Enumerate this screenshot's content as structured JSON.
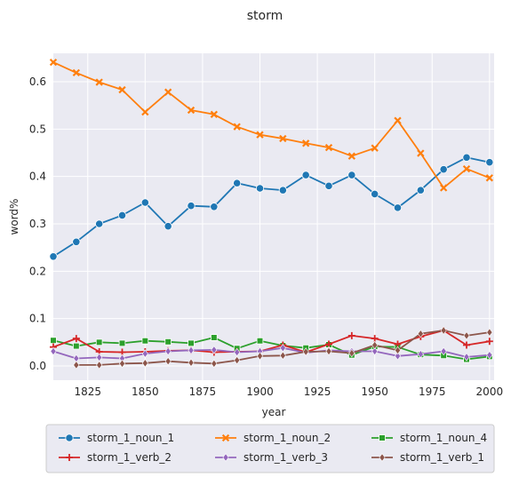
{
  "chart_data": {
    "type": "line",
    "title": "storm",
    "xlabel": "year",
    "ylabel": "word%",
    "xlim": [
      1810,
      2002
    ],
    "ylim": [
      -0.03,
      0.66
    ],
    "xticks": [
      1825,
      1850,
      1875,
      1900,
      1925,
      1950,
      1975,
      2000
    ],
    "yticks": [
      0.0,
      0.1,
      0.2,
      0.3,
      0.4,
      0.5,
      0.6
    ],
    "grid": true,
    "legend_position": "bottom",
    "series": [
      {
        "name": "storm_1_noun_1",
        "color": "#1f77b4",
        "marker": "circle",
        "x": [
          1810,
          1820,
          1830,
          1840,
          1850,
          1860,
          1870,
          1880,
          1890,
          1900,
          1910,
          1920,
          1930,
          1940,
          1950,
          1960,
          1970,
          1980,
          1990,
          2000
        ],
        "y": [
          0.231,
          0.262,
          0.3,
          0.318,
          0.345,
          0.295,
          0.338,
          0.336,
          0.386,
          0.375,
          0.371,
          0.403,
          0.38,
          0.403,
          0.363,
          0.334,
          0.371,
          0.415,
          0.44,
          0.43
        ]
      },
      {
        "name": "storm_1_noun_2",
        "color": "#ff7f0e",
        "marker": "x",
        "x": [
          1810,
          1820,
          1830,
          1840,
          1850,
          1860,
          1870,
          1880,
          1890,
          1900,
          1910,
          1920,
          1930,
          1940,
          1950,
          1960,
          1970,
          1980,
          1990,
          2000
        ],
        "y": [
          0.641,
          0.619,
          0.599,
          0.583,
          0.536,
          0.578,
          0.54,
          0.531,
          0.505,
          0.488,
          0.48,
          0.47,
          0.461,
          0.443,
          0.46,
          0.518,
          0.449,
          0.376,
          0.416,
          0.397
        ]
      },
      {
        "name": "storm_1_noun_4",
        "color": "#2ca02c",
        "marker": "square",
        "x": [
          1810,
          1820,
          1830,
          1840,
          1850,
          1860,
          1870,
          1880,
          1890,
          1900,
          1910,
          1920,
          1930,
          1940,
          1950,
          1960,
          1970,
          1980,
          1990,
          2000
        ],
        "y": [
          0.054,
          0.042,
          0.05,
          0.048,
          0.053,
          0.051,
          0.048,
          0.06,
          0.037,
          0.053,
          0.043,
          0.038,
          0.045,
          0.023,
          0.041,
          0.04,
          0.024,
          0.022,
          0.014,
          0.02
        ]
      },
      {
        "name": "storm_1_verb_2",
        "color": "#d62728",
        "marker": "plus",
        "x": [
          1810,
          1820,
          1830,
          1840,
          1850,
          1860,
          1870,
          1880,
          1890,
          1900,
          1910,
          1920,
          1930,
          1940,
          1950,
          1960,
          1970,
          1980,
          1990,
          2000
        ],
        "y": [
          0.04,
          0.058,
          0.03,
          0.029,
          0.03,
          0.032,
          0.033,
          0.029,
          0.03,
          0.031,
          0.044,
          0.029,
          0.046,
          0.064,
          0.058,
          0.046,
          0.062,
          0.075,
          0.044,
          0.052
        ]
      },
      {
        "name": "storm_1_verb_3",
        "color": "#9467bd",
        "marker": "diamond",
        "x": [
          1810,
          1820,
          1830,
          1840,
          1850,
          1860,
          1870,
          1880,
          1890,
          1900,
          1910,
          1920,
          1930,
          1940,
          1950,
          1960,
          1970,
          1980,
          1990,
          2000
        ],
        "y": [
          0.031,
          0.016,
          0.018,
          0.016,
          0.026,
          0.031,
          0.033,
          0.034,
          0.029,
          0.031,
          0.038,
          0.028,
          0.033,
          0.031,
          0.031,
          0.021,
          0.025,
          0.031,
          0.019,
          0.023
        ]
      },
      {
        "name": "storm_1_verb_1",
        "color": "#8c564b",
        "marker": "diamond",
        "x": [
          1820,
          1830,
          1840,
          1850,
          1860,
          1870,
          1880,
          1890,
          1900,
          1910,
          1920,
          1930,
          1940,
          1950,
          1960,
          1970,
          1980,
          1990,
          2000
        ],
        "y": [
          0.002,
          0.002,
          0.005,
          0.006,
          0.01,
          0.007,
          0.005,
          0.012,
          0.021,
          0.022,
          0.03,
          0.031,
          0.027,
          0.044,
          0.033,
          0.068,
          0.075,
          0.064,
          0.071
        ]
      }
    ]
  }
}
